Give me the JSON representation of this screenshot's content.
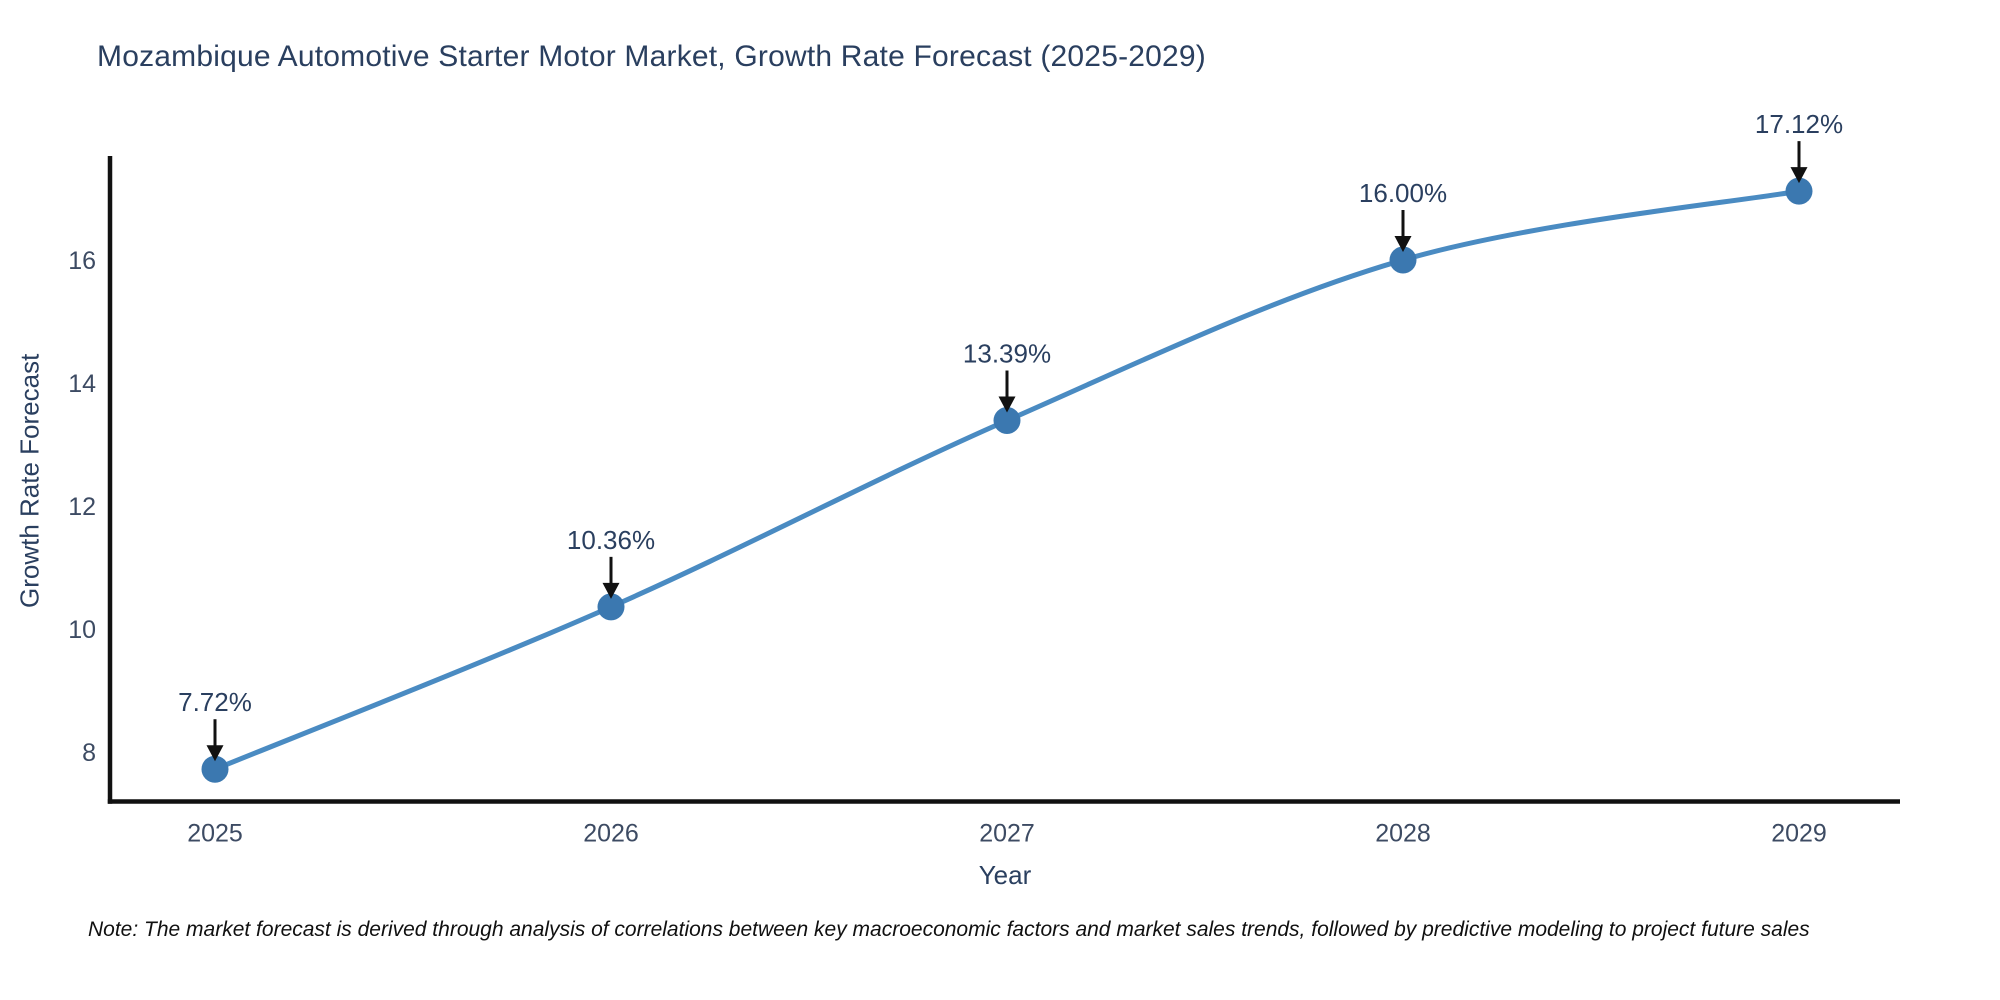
{
  "chart_data": {
    "type": "line",
    "title": "Mozambique Automotive Starter Motor Market, Growth Rate Forecast (2025-2029)",
    "xlabel": "Year",
    "ylabel": "Growth Rate Forecast",
    "x": [
      2025,
      2026,
      2027,
      2028,
      2029
    ],
    "series": [
      {
        "name": "Growth Rate Forecast",
        "values": [
          7.72,
          10.36,
          13.39,
          16.0,
          17.12
        ]
      }
    ],
    "point_labels": [
      "7.72%",
      "10.36%",
      "13.39%",
      "16.00%",
      "17.12%"
    ],
    "yticks": [
      8,
      10,
      12,
      14,
      16
    ],
    "ylim": [
      7.2,
      17.7
    ],
    "grid": false,
    "legend": "none",
    "line_shape": "spline",
    "line_color": "#4a8bc2",
    "marker_color": "#3b78b0",
    "axis_color": "#111111",
    "tick_color": "#3d4b63",
    "text_color": "#2a3f5f",
    "annotation_color": "#2a3f5f",
    "arrow_color": "#111111"
  },
  "note": "Note: The market forecast is derived through analysis of correlations between key macroeconomic factors and market sales trends, followed by predictive modeling to project future sales"
}
